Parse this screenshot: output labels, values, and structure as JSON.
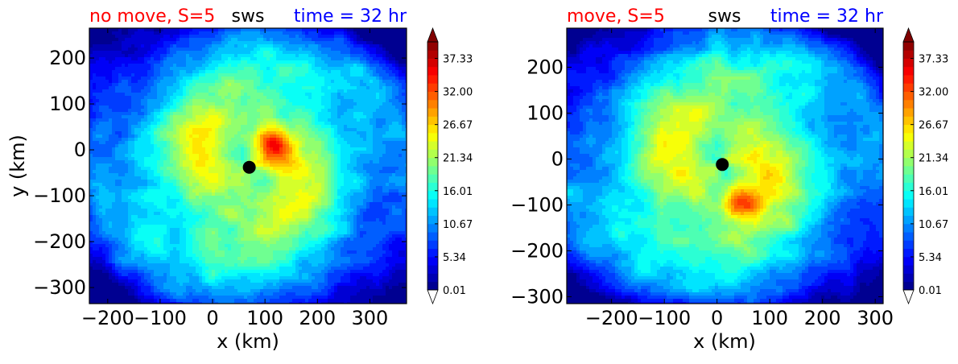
{
  "colors": {
    "title_left": "#ff0000",
    "title_center": "#000000",
    "title_right": "#0000ff",
    "center_marker": "#000000"
  },
  "colormap": "jet",
  "chart_data": [
    {
      "type": "heatmap",
      "variable": "sws",
      "title_left": "no move, S=5",
      "title_center": "sws",
      "title_right": "time = 32 hr",
      "xlabel": "x (km)",
      "ylabel": "y (km)",
      "xlim": [
        -235,
        370
      ],
      "ylim": [
        -335,
        265
      ],
      "xticks": [
        -200,
        -100,
        0,
        100,
        200,
        300
      ],
      "yticks": [
        200,
        100,
        0,
        -100,
        -200,
        -300
      ],
      "center": {
        "x": 70,
        "y": -38
      },
      "colorbar": {
        "range": [
          0.01,
          40
        ],
        "ticks": [
          0.01,
          5.34,
          10.67,
          16.01,
          21.34,
          26.67,
          32.0,
          37.33
        ],
        "tick_labels": [
          "0.01",
          "5.34",
          "10.67",
          "16.01",
          "21.34",
          "26.67",
          "32.00",
          "37.33"
        ],
        "extend": "both"
      },
      "features": [
        {
          "kind": "max",
          "x": 115,
          "y": 10,
          "value": 31
        },
        {
          "kind": "band",
          "x": 80,
          "y": -40,
          "value": 20
        }
      ]
    },
    {
      "type": "heatmap",
      "variable": "sws",
      "title_left": "move, S=5",
      "title_center": "sws",
      "title_right": "time = 32 hr",
      "xlabel": "x (km)",
      "ylabel": "",
      "xlim": [
        -285,
        315
      ],
      "ylim": [
        -315,
        285
      ],
      "xticks": [
        -200,
        -100,
        0,
        100,
        200,
        300
      ],
      "yticks": [
        200,
        100,
        0,
        -100,
        -200,
        -300
      ],
      "center": {
        "x": 10,
        "y": -12
      },
      "colorbar": {
        "range": [
          0.01,
          40
        ],
        "ticks": [
          0.01,
          5.34,
          10.67,
          16.01,
          21.34,
          26.67,
          32.0,
          37.33
        ],
        "tick_labels": [
          "0.01",
          "5.34",
          "10.67",
          "16.01",
          "21.34",
          "26.67",
          "32.00",
          "37.33"
        ],
        "extend": "both"
      },
      "features": [
        {
          "kind": "max",
          "x": 50,
          "y": -95,
          "value": 28
        },
        {
          "kind": "max",
          "x": -190,
          "y": -150,
          "value": 21
        }
      ]
    }
  ]
}
